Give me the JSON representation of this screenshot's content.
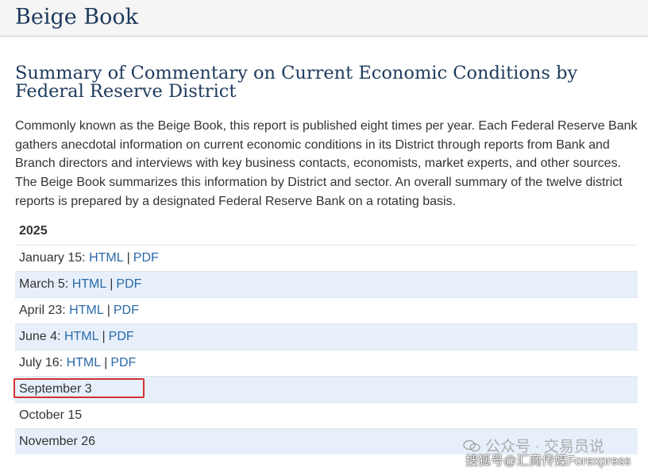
{
  "header": {
    "site_title": "Beige Book"
  },
  "main": {
    "heading": "Summary of Commentary on Current Economic Conditions by Federal Reserve District",
    "intro": "Commonly known as the Beige Book, this report is published eight times per year. Each Federal Reserve Bank gathers anecdotal information on current economic conditions in its District through reports from Bank and Branch directors and interviews with key business contacts, economists, market experts, and other sources. The Beige Book summarizes this information by District and sector. An overall summary of the twelve district reports is prepared by a designated Federal Reserve Bank on a rotating basis.",
    "year": "2025",
    "reports": [
      {
        "date": "January 15:",
        "html": "HTML",
        "sep": "|",
        "pdf": "PDF"
      },
      {
        "date": "March 5:",
        "html": "HTML",
        "sep": "|",
        "pdf": "PDF"
      },
      {
        "date": "April 23:",
        "html": "HTML",
        "sep": "|",
        "pdf": "PDF"
      },
      {
        "date": "June 4:",
        "html": "HTML",
        "sep": "|",
        "pdf": "PDF"
      },
      {
        "date": "July 16:",
        "html": "HTML",
        "sep": "|",
        "pdf": "PDF"
      },
      {
        "date": "September 3"
      },
      {
        "date": "October 15"
      },
      {
        "date": "November 26"
      }
    ]
  },
  "watermarks": {
    "line1": "公众号 · 交易员说",
    "line2": "搜狐号@汇商传媒Forexpress"
  },
  "colors": {
    "title": "#1d3a5c",
    "link": "#2a69a8",
    "row_alt": "#e7f0fa",
    "highlight": "#d43030"
  }
}
